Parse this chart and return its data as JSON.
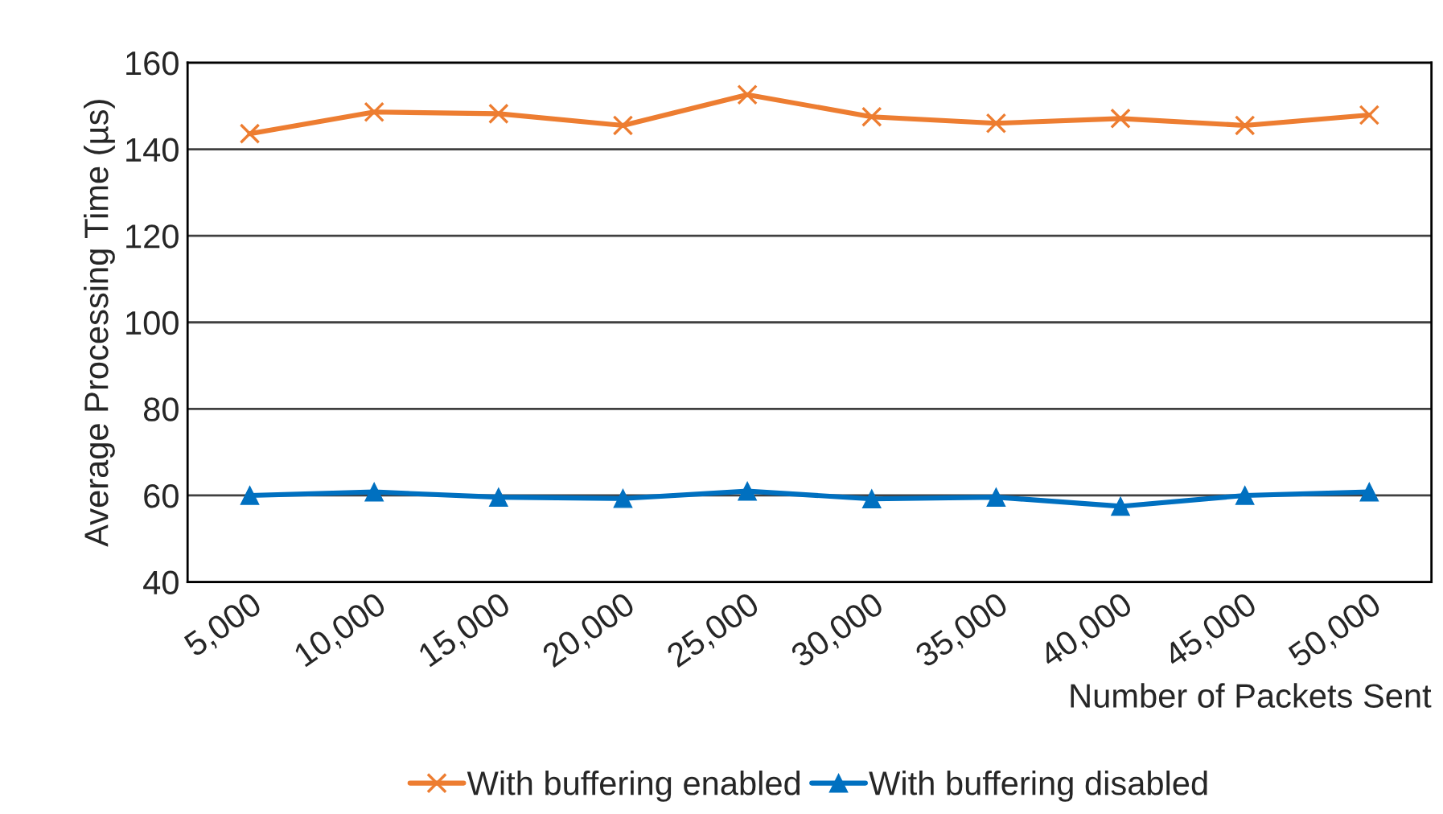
{
  "chart_data": {
    "type": "line",
    "xlabel": "Number of Packets Sent",
    "ylabel": "Average Processing Time (µs)",
    "categories": [
      "5,000",
      "10,000",
      "15,000",
      "20,000",
      "25,000",
      "30,000",
      "35,000",
      "40,000",
      "45,000",
      "50,000"
    ],
    "series": [
      {
        "name": "With buffering enabled",
        "color": "#ed7d31",
        "marker": "cross",
        "values": [
          143.6,
          148.6,
          148.2,
          145.5,
          152.6,
          147.5,
          146.0,
          147.1,
          145.5,
          147.9
        ]
      },
      {
        "name": "With buffering disabled",
        "color": "#0070c0",
        "marker": "triangle",
        "values": [
          60,
          60.8,
          59.6,
          59.3,
          61,
          59.2,
          59.6,
          57.5,
          60,
          60.8
        ]
      }
    ],
    "ylim": [
      40,
      160
    ],
    "yticks": [
      40,
      60,
      80,
      100,
      120,
      140,
      160
    ],
    "grid": "y",
    "legend": "bottom",
    "line_style": "solid"
  }
}
